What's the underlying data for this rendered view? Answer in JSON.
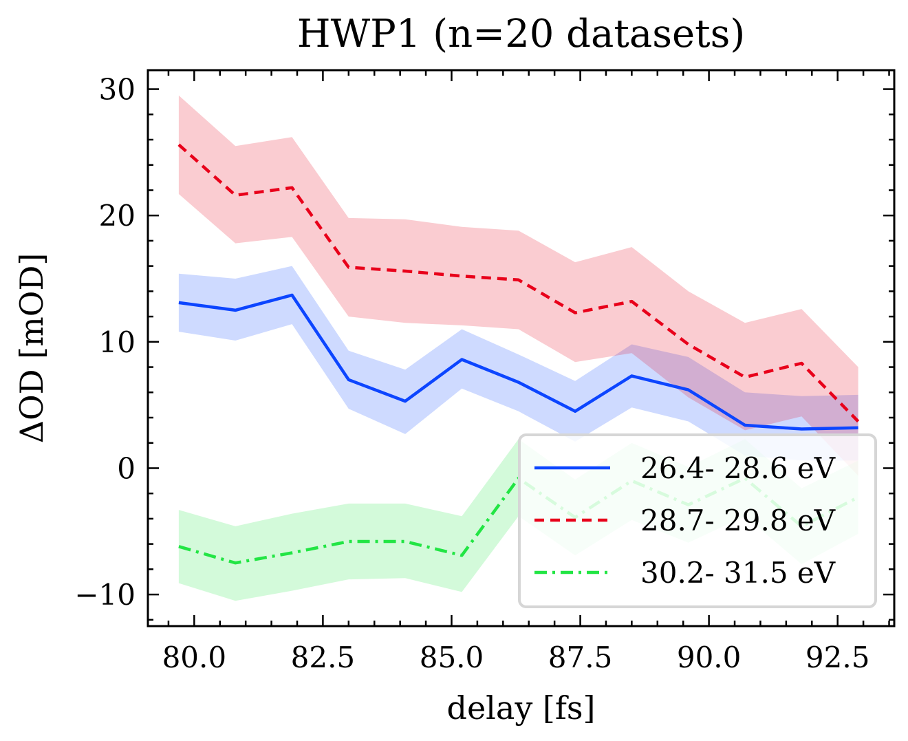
{
  "chart_data": {
    "type": "line",
    "title": "HWP1 (n=20 datasets)",
    "xlabel": "delay [fs]",
    "ylabel": "ΔOD [mOD]",
    "xlim": [
      79.1,
      93.6
    ],
    "ylim": [
      -12.5,
      31.5
    ],
    "xticks": [
      80.0,
      82.5,
      85.0,
      87.5,
      90.0,
      92.5
    ],
    "xtick_labels": [
      "80.0",
      "82.5",
      "85.0",
      "87.5",
      "90.0",
      "92.5"
    ],
    "yticks": [
      -10,
      0,
      10,
      20,
      30
    ],
    "ytick_labels": [
      "−10",
      "0",
      "10",
      "20",
      "30"
    ],
    "grid": false,
    "legend_position": "lower-right",
    "x": [
      79.7,
      80.8,
      81.9,
      83.0,
      84.1,
      85.2,
      86.3,
      87.4,
      88.5,
      89.6,
      90.7,
      91.8,
      92.9
    ],
    "series": [
      {
        "name": "26.4- 28.6 eV",
        "color": "#0c45ff",
        "dash": "solid",
        "values": [
          13.1,
          12.5,
          13.7,
          7.0,
          5.3,
          8.6,
          6.8,
          4.5,
          7.3,
          6.2,
          3.4,
          3.1,
          3.2
        ],
        "upper": [
          15.4,
          15.0,
          16.0,
          9.3,
          7.8,
          11.0,
          9.0,
          6.9,
          9.8,
          8.8,
          6.0,
          5.7,
          5.8
        ],
        "lower": [
          10.8,
          10.1,
          11.4,
          4.7,
          2.7,
          6.3,
          4.5,
          2.1,
          4.8,
          3.7,
          1.0,
          0.6,
          0.6
        ]
      },
      {
        "name": "28.7- 29.8 eV",
        "color": "#e8001a",
        "dash": "dashed",
        "values": [
          25.6,
          21.6,
          22.2,
          15.9,
          15.6,
          15.2,
          14.9,
          12.3,
          13.2,
          9.8,
          7.2,
          8.3,
          3.7
        ],
        "upper": [
          29.5,
          25.5,
          26.2,
          19.8,
          19.7,
          19.1,
          18.8,
          16.3,
          17.5,
          14.0,
          11.5,
          12.6,
          8.0
        ],
        "lower": [
          21.7,
          17.8,
          18.3,
          12.0,
          11.5,
          11.3,
          11.0,
          8.4,
          9.1,
          5.6,
          3.0,
          4.1,
          -0.6
        ]
      },
      {
        "name": "30.2- 31.5 eV",
        "color": "#22e544",
        "dash": "dashdot",
        "values": [
          -6.2,
          -7.5,
          -6.7,
          -5.8,
          -5.8,
          -6.9,
          -0.8,
          -3.9,
          -1.0,
          -2.9,
          -0.8,
          -4.6,
          -2.3
        ],
        "upper": [
          -3.3,
          -4.6,
          -3.6,
          -2.8,
          -2.8,
          -3.8,
          2.3,
          -0.9,
          2.0,
          0.1,
          2.3,
          -1.6,
          0.6
        ],
        "lower": [
          -9.1,
          -10.5,
          -9.7,
          -8.8,
          -8.7,
          -9.8,
          -3.8,
          -6.9,
          -4.1,
          -5.9,
          -3.8,
          -7.6,
          -5.2
        ]
      }
    ]
  }
}
